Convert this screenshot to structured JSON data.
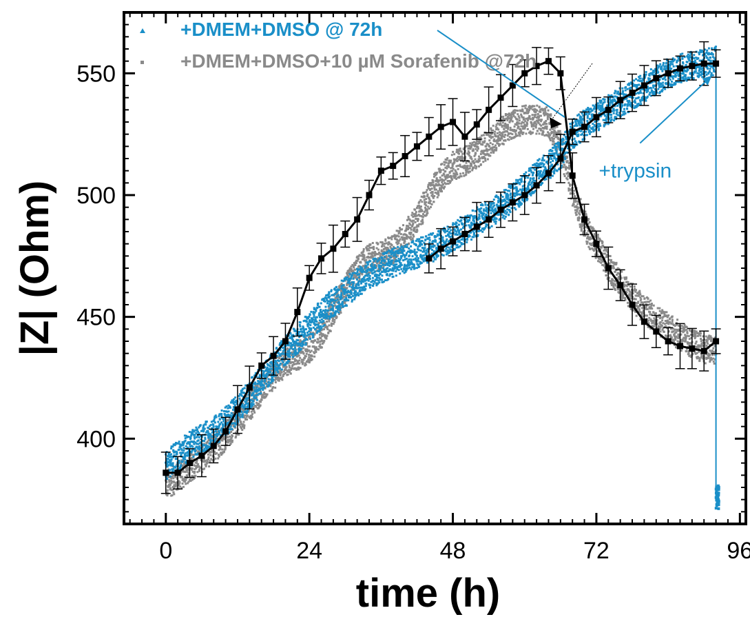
{
  "chart_data": {
    "type": "scatter",
    "xlabel": "time (h)",
    "ylabel": "|Z| (Ohm)",
    "xlim": [
      -7,
      97
    ],
    "ylim": [
      365,
      575
    ],
    "x_ticks": [
      0,
      24,
      48,
      72,
      96
    ],
    "x_tick_labels": [
      "0",
      "24",
      "48",
      "72",
      "96"
    ],
    "y_ticks": [
      400,
      450,
      500,
      550
    ],
    "y_tick_labels": [
      "400",
      "450",
      "500",
      "550"
    ],
    "grid": false,
    "legend_position": "top-left",
    "series": [
      {
        "name": "+DMEM+DMSO @ 72h",
        "color": "#1a8fc8",
        "marker": "triangle",
        "x": [
          0,
          2,
          4,
          6,
          8,
          10,
          12,
          14,
          16,
          18,
          20,
          22,
          24,
          26,
          28,
          30,
          32,
          34,
          36,
          38,
          40,
          42,
          44,
          46,
          48,
          50,
          52,
          54,
          56,
          58,
          60,
          62,
          64,
          66,
          68,
          70,
          72,
          74,
          76,
          78,
          80,
          82,
          84,
          86,
          88,
          90,
          92
        ],
        "y": [
          389,
          393,
          397,
          400,
          403,
          407,
          412,
          418,
          424,
          430,
          436,
          441,
          446,
          451,
          456,
          460,
          464,
          467,
          470,
          472,
          474,
          476,
          478,
          480,
          483,
          486,
          489,
          492,
          495,
          499,
          503,
          508,
          512,
          517,
          525,
          529,
          532,
          535,
          538,
          541,
          544,
          547,
          550,
          552,
          553,
          554,
          555
        ]
      },
      {
        "name": "+DMEM+DMSO+10 µM Sorafenib @72h",
        "color": "#8a8a8a",
        "marker": "square",
        "x": [
          0,
          2,
          4,
          6,
          8,
          10,
          12,
          14,
          16,
          18,
          20,
          22,
          24,
          26,
          28,
          30,
          32,
          34,
          36,
          38,
          40,
          42,
          44,
          46,
          48,
          50,
          52,
          54,
          56,
          58,
          60,
          62,
          64,
          66,
          68,
          70,
          72,
          74,
          76,
          78,
          80,
          82,
          84,
          86,
          88,
          90,
          92
        ],
        "y": [
          381,
          384,
          388,
          392,
          396,
          401,
          407,
          413,
          420,
          426,
          431,
          434,
          437,
          443,
          452,
          461,
          469,
          474,
          475,
          478,
          483,
          490,
          499,
          507,
          512,
          514,
          517,
          521,
          526,
          529,
          531,
          531,
          530,
          520,
          502,
          488,
          479,
          471,
          464,
          458,
          453,
          449,
          446,
          442,
          439,
          437,
          436
        ]
      },
      {
        "name": "",
        "color": "#000000",
        "marker": "square",
        "x": [
          0,
          2,
          4,
          6,
          8,
          10,
          12,
          14,
          16,
          18,
          20,
          22,
          24,
          26,
          28,
          30,
          32,
          34,
          36,
          38,
          40,
          42,
          44,
          46,
          48,
          50,
          52,
          54,
          56,
          58,
          60,
          62,
          64,
          66,
          68,
          70,
          72,
          74,
          76,
          78,
          80,
          82,
          84,
          86,
          88,
          90,
          92
        ],
        "y": [
          386,
          386,
          390,
          393,
          397,
          403,
          412,
          421,
          430,
          434,
          440,
          452,
          466,
          474,
          478,
          484,
          490,
          500,
          510,
          512,
          516,
          520,
          524,
          528,
          530,
          524,
          529,
          535,
          540,
          545,
          550,
          553,
          555,
          550,
          508,
          490,
          480,
          470,
          463,
          455,
          448,
          444,
          440,
          438,
          437,
          436,
          440
        ]
      },
      {
        "name": "",
        "color": "#000000",
        "marker": "square",
        "x": [
          44,
          46,
          48,
          50,
          52,
          54,
          56,
          58,
          60,
          62,
          64,
          66,
          68,
          70,
          72,
          74,
          76,
          78,
          80,
          82,
          84,
          86,
          88,
          90,
          92
        ],
        "y": [
          474,
          478,
          481,
          484,
          487,
          490,
          494,
          497,
          500,
          504,
          509,
          515,
          526,
          528,
          532,
          535,
          539,
          542,
          545,
          548,
          550,
          552,
          553,
          554,
          554
        ]
      }
    ],
    "trypsin_drop": {
      "x": 92,
      "y_from": 555,
      "y_to": 376,
      "color": "#1a8fc8"
    },
    "annotations": [
      {
        "text": "+trypsin",
        "color": "#1a8fc8",
        "x": 77,
        "y": 510
      }
    ]
  }
}
